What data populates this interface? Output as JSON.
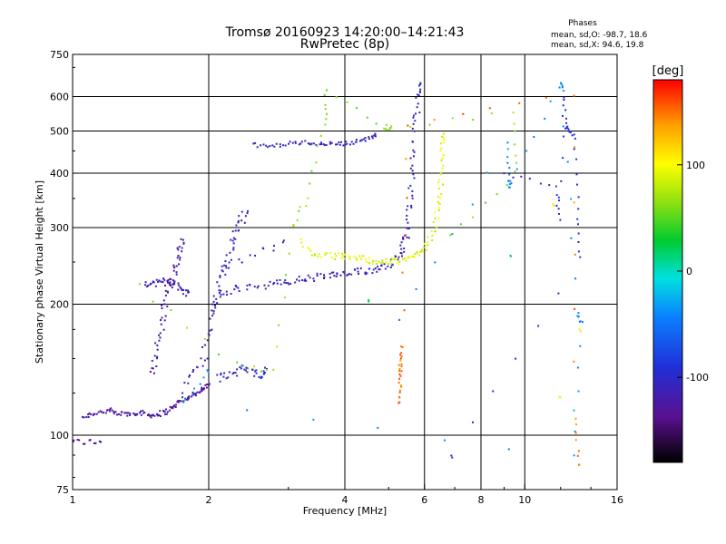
{
  "chart_data": {
    "type": "scatter",
    "title": "Tromsø 20160923 14:20:00–14:21:43",
    "subtitle": "RwPretec (8p)",
    "xlabel": "Frequency [MHz]",
    "ylabel": "Stationary phase Virtual Height [km]",
    "x_scale": "log",
    "y_scale": "log",
    "xlim": [
      1,
      16
    ],
    "ylim": [
      75,
      750
    ],
    "x_ticks": [
      1,
      2,
      4,
      6,
      8,
      10,
      16
    ],
    "x_tick_labels": [
      "1",
      "2",
      "4",
      "6",
      "8",
      "10",
      "16"
    ],
    "y_ticks": [
      75,
      100,
      200,
      300,
      400,
      500,
      600,
      750
    ],
    "y_tick_labels": [
      "75",
      "100",
      "200",
      "300",
      "400",
      "500",
      "600",
      "750"
    ],
    "x_gridlines": [
      2,
      4,
      6,
      8,
      10
    ],
    "y_gridlines": [
      100,
      200,
      300,
      400,
      500,
      600
    ],
    "grid": true,
    "stats": {
      "heading": "Phases",
      "line_o": "mean, sd,O:  -98.7, 18.6",
      "line_x": "mean, sd,X:  94.6, 19.8"
    },
    "colorbar": {
      "label": "[deg]",
      "range": [
        -180,
        180
      ],
      "ticks": [
        100,
        0,
        -100
      ],
      "tick_labels": [
        "100",
        "0",
        "-100"
      ]
    },
    "traces": [
      {
        "phase": -130,
        "jitter": 0.012,
        "points": [
          [
            1.0,
            97
          ],
          [
            1.03,
            97
          ],
          [
            1.06,
            96
          ],
          [
            1.09,
            97
          ],
          [
            1.12,
            96
          ],
          [
            1.15,
            97
          ]
        ]
      },
      {
        "phase": -125,
        "jitter": 0.02,
        "points": [
          [
            1.05,
            110
          ],
          [
            1.1,
            112
          ],
          [
            1.15,
            113
          ],
          [
            1.2,
            114
          ],
          [
            1.25,
            112
          ],
          [
            1.3,
            112
          ],
          [
            1.35,
            112
          ],
          [
            1.4,
            113
          ],
          [
            1.45,
            112
          ],
          [
            1.5,
            111
          ],
          [
            1.55,
            112
          ],
          [
            1.6,
            113
          ],
          [
            1.65,
            115
          ],
          [
            1.7,
            118
          ],
          [
            1.75,
            120
          ],
          [
            1.8,
            122
          ],
          [
            1.85,
            124
          ],
          [
            1.9,
            126
          ],
          [
            1.95,
            128
          ],
          [
            2.0,
            130
          ]
        ]
      },
      {
        "phase": -120,
        "jitter": 0.03,
        "points": [
          [
            1.5,
            140
          ],
          [
            1.52,
            150
          ],
          [
            1.55,
            165
          ],
          [
            1.58,
            180
          ],
          [
            1.6,
            200
          ],
          [
            1.62,
            215
          ],
          [
            1.65,
            225
          ],
          [
            1.68,
            235
          ],
          [
            1.7,
            250
          ],
          [
            1.72,
            265
          ],
          [
            1.75,
            280
          ]
        ]
      },
      {
        "phase": -115,
        "jitter": 0.02,
        "points": [
          [
            1.45,
            222
          ],
          [
            1.5,
            222
          ],
          [
            1.55,
            225
          ],
          [
            1.6,
            228
          ],
          [
            1.65,
            225
          ],
          [
            1.7,
            222
          ],
          [
            1.75,
            215
          ],
          [
            1.8,
            212
          ]
        ]
      },
      {
        "phase": -110,
        "jitter": 0.035,
        "points": [
          [
            1.75,
            125
          ],
          [
            1.85,
            140
          ],
          [
            1.95,
            150
          ],
          [
            2.0,
            170
          ],
          [
            2.05,
            195
          ],
          [
            2.1,
            215
          ],
          [
            2.15,
            235
          ],
          [
            2.2,
            250
          ],
          [
            2.25,
            270
          ],
          [
            2.3,
            290
          ],
          [
            2.35,
            310
          ],
          [
            2.4,
            320
          ]
        ]
      },
      {
        "phase": -108,
        "jitter": 0.03,
        "points": [
          [
            2.05,
            200
          ],
          [
            2.15,
            210
          ],
          [
            2.3,
            218
          ],
          [
            2.5,
            220
          ],
          [
            2.7,
            222
          ],
          [
            2.9,
            223
          ],
          [
            3.0,
            225
          ],
          [
            3.2,
            228
          ],
          [
            3.4,
            230
          ],
          [
            3.6,
            232
          ],
          [
            3.8,
            233
          ],
          [
            4.0,
            234
          ],
          [
            4.2,
            236
          ],
          [
            4.4,
            238
          ],
          [
            4.6,
            240
          ],
          [
            4.8,
            243
          ],
          [
            5.0,
            248
          ],
          [
            5.2,
            255
          ],
          [
            5.35,
            265
          ],
          [
            5.45,
            280
          ],
          [
            5.5,
            300
          ],
          [
            5.55,
            330
          ],
          [
            5.6,
            370
          ],
          [
            5.65,
            420
          ],
          [
            5.7,
            480
          ],
          [
            5.75,
            540
          ],
          [
            5.8,
            600
          ],
          [
            5.85,
            640
          ]
        ]
      },
      {
        "phase": -112,
        "jitter": 0.025,
        "points": [
          [
            2.2,
            240
          ],
          [
            2.35,
            250
          ],
          [
            2.5,
            258
          ],
          [
            2.65,
            265
          ],
          [
            2.8,
            270
          ],
          [
            2.95,
            278
          ]
        ]
      },
      {
        "phase": -106,
        "jitter": 0.015,
        "points": [
          [
            2.5,
            465
          ],
          [
            2.7,
            460
          ],
          [
            2.9,
            465
          ],
          [
            3.1,
            470
          ],
          [
            3.3,
            470
          ],
          [
            3.5,
            468
          ],
          [
            3.7,
            468
          ],
          [
            3.9,
            467
          ],
          [
            4.1,
            470
          ],
          [
            4.3,
            475
          ],
          [
            4.5,
            480
          ],
          [
            4.7,
            490
          ]
        ]
      },
      {
        "phase": -100,
        "jitter": 0.03,
        "points": [
          [
            2.1,
            135
          ],
          [
            2.2,
            138
          ],
          [
            2.3,
            140
          ],
          [
            2.4,
            142
          ],
          [
            2.5,
            140
          ],
          [
            2.6,
            138
          ],
          [
            2.7,
            140
          ]
        ]
      },
      {
        "phase": 90,
        "jitter": 0.025,
        "points": [
          [
            3.2,
            280
          ],
          [
            3.4,
            262
          ],
          [
            3.6,
            258
          ],
          [
            3.8,
            258
          ],
          [
            4.0,
            258
          ],
          [
            4.2,
            256
          ],
          [
            4.4,
            254
          ],
          [
            4.6,
            252
          ],
          [
            4.8,
            250
          ],
          [
            5.0,
            250
          ],
          [
            5.2,
            251
          ],
          [
            5.4,
            253
          ],
          [
            5.6,
            256
          ],
          [
            5.8,
            262
          ],
          [
            6.0,
            270
          ],
          [
            6.2,
            285
          ],
          [
            6.35,
            305
          ],
          [
            6.45,
            335
          ],
          [
            6.5,
            370
          ],
          [
            6.55,
            410
          ],
          [
            6.58,
            450
          ],
          [
            6.6,
            490
          ]
        ]
      },
      {
        "phase": 60,
        "jitter": 0.02,
        "points": [
          [
            1.4,
            220
          ],
          [
            2.3,
            145
          ],
          [
            2.8,
            140
          ],
          [
            3.05,
            300
          ],
          [
            3.3,
            350
          ],
          [
            3.6,
            520
          ],
          [
            3.65,
            615
          ],
          [
            4.9,
            510
          ],
          [
            5.05,
            510
          ],
          [
            9.4,
            550
          ],
          [
            9.6,
            400
          ],
          [
            6.9,
            285
          ]
        ]
      },
      {
        "phase": 150,
        "jitter": 0.015,
        "points": [
          [
            5.3,
            118
          ],
          [
            5.3,
            128
          ],
          [
            5.3,
            140
          ],
          [
            5.3,
            148
          ],
          [
            5.35,
            160
          ],
          [
            5.5,
            520
          ],
          [
            12.8,
            605
          ],
          [
            12.9,
            110
          ],
          [
            13.2,
            85
          ]
        ]
      },
      {
        "phase": -40,
        "jitter": 0.02,
        "points": [
          [
            5.3,
            185
          ],
          [
            9.1,
            465
          ],
          [
            9.2,
            385
          ],
          [
            9.3,
            370
          ],
          [
            11.9,
            640
          ],
          [
            12.1,
            625
          ],
          [
            13.1,
            190
          ],
          [
            13.3,
            180
          ],
          [
            12.8,
            90
          ],
          [
            1.75,
            118
          ],
          [
            2.0,
            140
          ]
        ]
      },
      {
        "phase": -95,
        "jitter": 0.015,
        "points": [
          [
            9.0,
            400
          ],
          [
            11.8,
            370
          ],
          [
            11.9,
            310
          ],
          [
            12.2,
            600
          ],
          [
            12.3,
            510
          ],
          [
            12.5,
            500
          ],
          [
            12.9,
            485
          ],
          [
            13.1,
            330
          ],
          [
            13.2,
            255
          ],
          [
            6.9,
            89
          ]
        ]
      },
      {
        "phase": 20,
        "jitter": 0.015,
        "points": [
          [
            9.3,
            260
          ],
          [
            4.5,
            205
          ]
        ]
      },
      {
        "phase": 110,
        "jitter": 0.015,
        "points": [
          [
            11.6,
            340
          ],
          [
            12.0,
            122
          ],
          [
            13.2,
            175
          ]
        ]
      }
    ]
  }
}
